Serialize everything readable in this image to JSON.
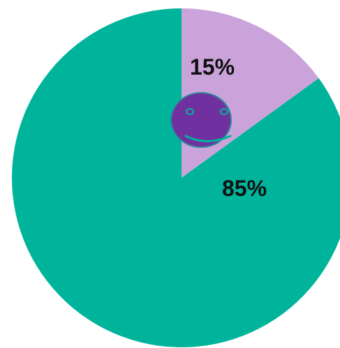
{
  "chart_data": {
    "type": "pie",
    "start_angle_deg": 0,
    "direction": "clockwise",
    "slices": [
      {
        "value": 15,
        "label": "15%",
        "color": "#c9a3d9"
      },
      {
        "value": 85,
        "label": "85%",
        "color": "#00b49c"
      }
    ],
    "center_icon": "smiley-face-icon",
    "center_icon_color": "#7030a0",
    "center_icon_outline": "#2e8b9a",
    "center_icon_feature_color": "#00b49c"
  }
}
